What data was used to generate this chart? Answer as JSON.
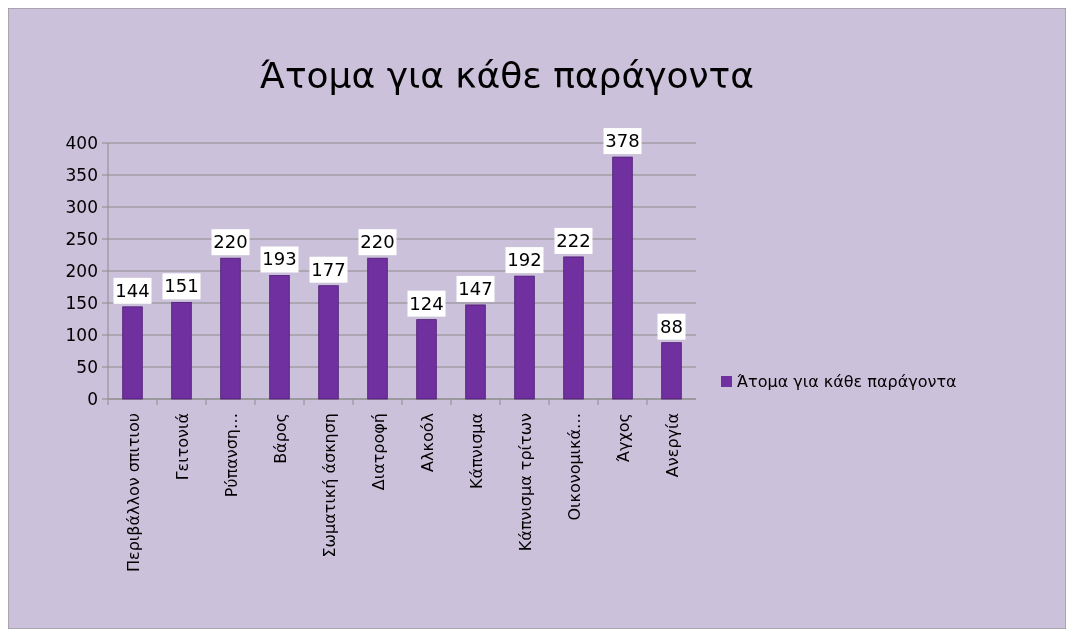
{
  "chart_data": {
    "type": "bar",
    "title": "Άτομα για κάθε παράγοντα",
    "categories": [
      "Περιβάλλον σπιτιου",
      "Γειτονιά",
      "Ρύπανση…",
      "Βάρος",
      "Σωματική άσκηση",
      "Διατροφή",
      "Αλκοόλ",
      "Κάπνισμα",
      "Κάπνισμα τρίτων",
      "Οικονομικά…",
      "Άγχος",
      "Ανεργία"
    ],
    "series": [
      {
        "name": "Άτομα για κάθε παράγοντα",
        "color": "#7030a0",
        "values": [
          144,
          151,
          220,
          193,
          177,
          220,
          124,
          147,
          192,
          222,
          378,
          88
        ]
      }
    ],
    "ylim": [
      0,
      400
    ],
    "yticks": [
      0,
      50,
      100,
      150,
      200,
      250,
      300,
      350,
      400
    ],
    "grid": "y",
    "legend": "right",
    "data_labels": true
  }
}
